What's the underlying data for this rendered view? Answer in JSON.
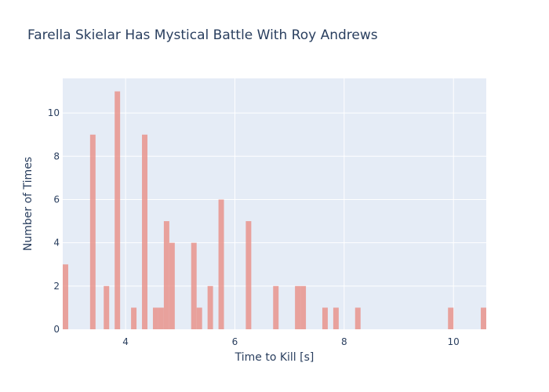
{
  "chart_data": {
    "type": "bar",
    "title": "Farella Skielar Has Mystical Battle With Roy Andrews",
    "xlabel": "Time to Kill [s]",
    "ylabel": "Number of Times",
    "xlim": [
      2.85,
      10.6
    ],
    "ylim": [
      0,
      11.6
    ],
    "x_ticks": [
      4,
      6,
      8,
      10
    ],
    "y_ticks": [
      0,
      2,
      4,
      6,
      8,
      10
    ],
    "bin_width": 0.1,
    "bins": [
      {
        "x": 2.9,
        "y": 3
      },
      {
        "x": 3.4,
        "y": 9
      },
      {
        "x": 3.65,
        "y": 2
      },
      {
        "x": 3.85,
        "y": 11
      },
      {
        "x": 4.15,
        "y": 1
      },
      {
        "x": 4.35,
        "y": 9
      },
      {
        "x": 4.55,
        "y": 1
      },
      {
        "x": 4.65,
        "y": 1
      },
      {
        "x": 4.75,
        "y": 5
      },
      {
        "x": 4.85,
        "y": 4
      },
      {
        "x": 5.25,
        "y": 4
      },
      {
        "x": 5.35,
        "y": 1
      },
      {
        "x": 5.55,
        "y": 2
      },
      {
        "x": 5.75,
        "y": 6
      },
      {
        "x": 6.25,
        "y": 5
      },
      {
        "x": 6.75,
        "y": 2
      },
      {
        "x": 7.15,
        "y": 2
      },
      {
        "x": 7.25,
        "y": 2
      },
      {
        "x": 7.65,
        "y": 1
      },
      {
        "x": 7.85,
        "y": 1
      },
      {
        "x": 8.25,
        "y": 1
      },
      {
        "x": 9.95,
        "y": 1
      },
      {
        "x": 10.55,
        "y": 1
      }
    ],
    "colors": {
      "bar": "#e88f86",
      "plot_bg": "#e5ecf6",
      "grid": "#ffffff",
      "text": "#2a3f5f"
    },
    "grid": true
  }
}
